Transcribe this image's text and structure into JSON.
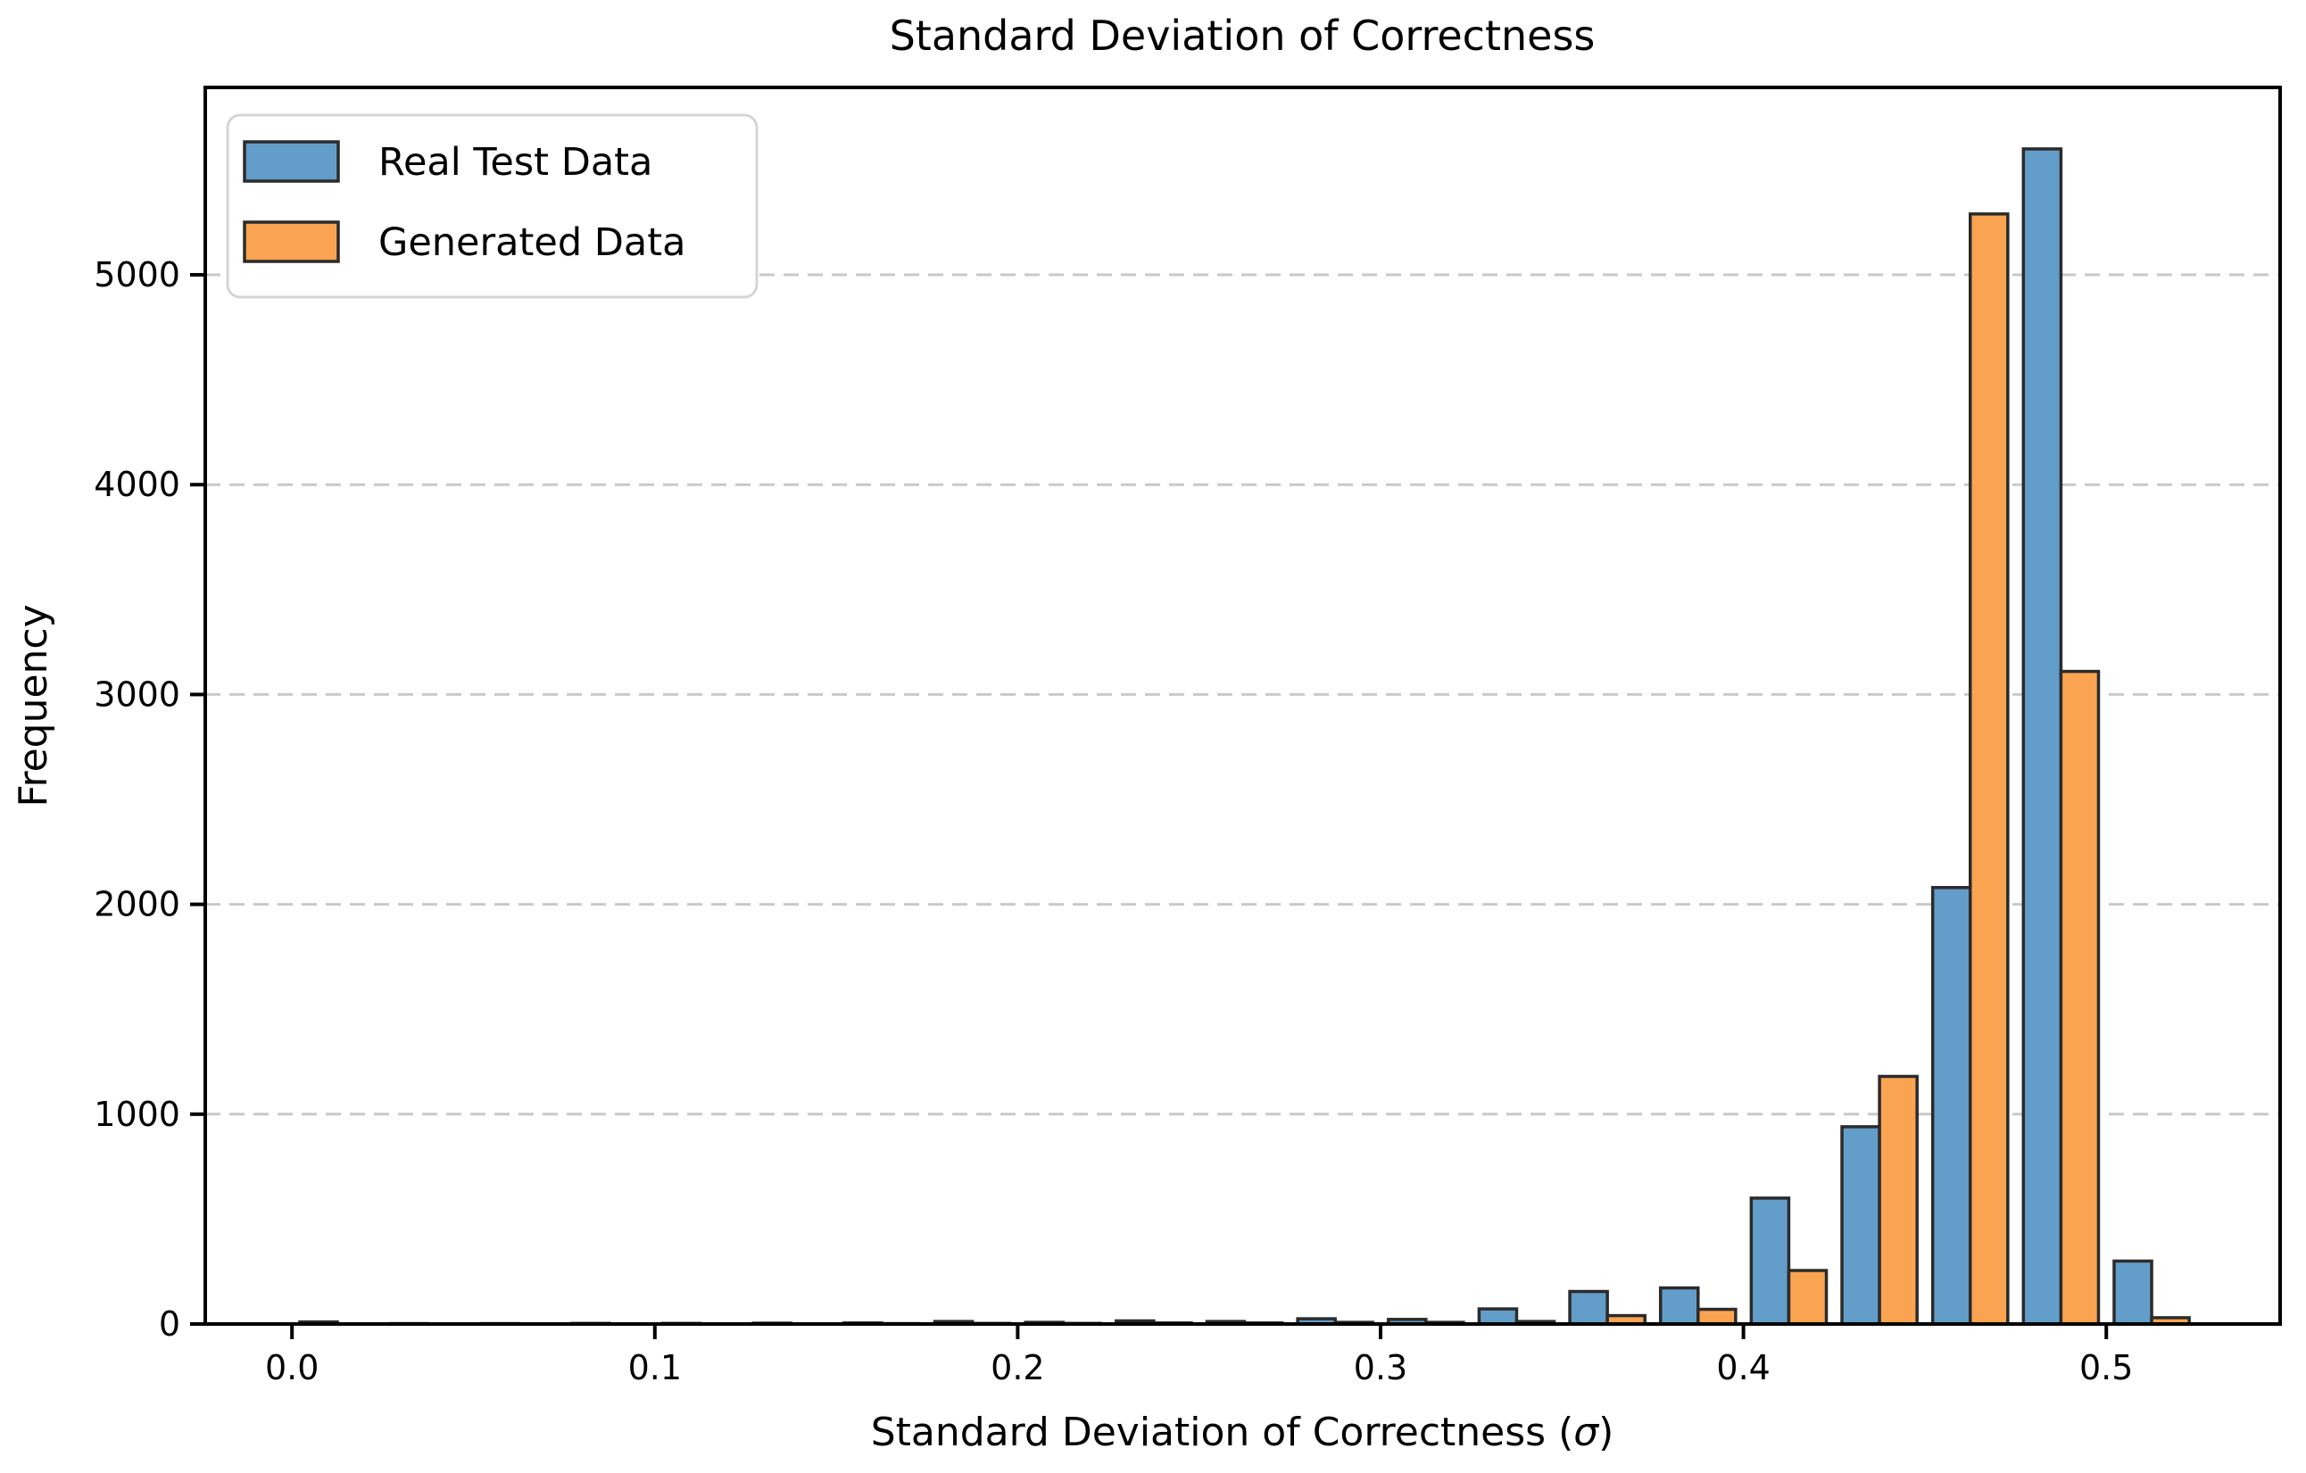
{
  "chart_data": {
    "type": "bar",
    "subtype": "grouped-histogram",
    "title": "Standard Deviation of Correctness",
    "xlabel_parts": {
      "prefix": "Standard Deviation of Correctness (",
      "sigma": "σ",
      "suffix": ")"
    },
    "ylabel": "Frequency",
    "bin_width": 0.025,
    "bin_starts": [
      0.0,
      0.025,
      0.05,
      0.075,
      0.1,
      0.125,
      0.15,
      0.175,
      0.2,
      0.225,
      0.25,
      0.275,
      0.3,
      0.325,
      0.35,
      0.375,
      0.4,
      0.425,
      0.45,
      0.475,
      0.5
    ],
    "series": [
      {
        "name": "Real Test Data",
        "color": "#639DC9",
        "values": [
          10,
          2,
          2,
          3,
          3,
          4,
          5,
          12,
          8,
          15,
          12,
          25,
          22,
          72,
          155,
          172,
          600,
          940,
          2080,
          5600,
          300
        ]
      },
      {
        "name": "Generated Data",
        "color": "#FAA451",
        "values": [
          0,
          0,
          0,
          0,
          0,
          0,
          2,
          3,
          3,
          5,
          5,
          8,
          8,
          12,
          40,
          70,
          255,
          1180,
          5290,
          3110,
          30
        ]
      }
    ],
    "xtick_values": [
      0.0,
      0.1,
      0.2,
      0.3,
      0.4,
      0.5
    ],
    "xtick_labels": [
      "0.0",
      "0.1",
      "0.2",
      "0.3",
      "0.4",
      "0.5"
    ],
    "ytick_values": [
      0,
      1000,
      2000,
      3000,
      4000,
      5000
    ],
    "ytick_labels": [
      "0",
      "1000",
      "2000",
      "3000",
      "4000",
      "5000"
    ],
    "xlim": [
      -0.0239,
      0.5479
    ],
    "ylim": [
      0,
      5893
    ],
    "grid": "horizontal-dashed",
    "grid_color": "#C9C9C9",
    "edge_color": "#2B2B2B",
    "spine_color": "#000000",
    "background_color": "#FFFFFF",
    "legend_position": "upper-left"
  }
}
